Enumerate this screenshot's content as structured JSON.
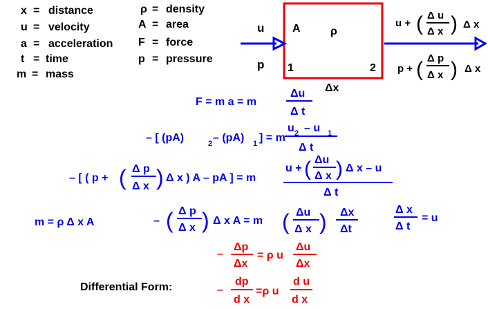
{
  "legend_left": [
    {
      "sym": "x",
      "eq": "=",
      "desc": "distance"
    },
    {
      "sym": "u",
      "eq": "=",
      "desc": "velocity"
    },
    {
      "sym": "a",
      "eq": "=",
      "desc": "acceleration"
    },
    {
      "sym": "t",
      "eq": "=",
      "desc": "time"
    },
    {
      "sym": "m",
      "eq": "=",
      "desc": "mass"
    }
  ],
  "legend_right": [
    {
      "sym": "ρ",
      "eq": "=",
      "desc": "density"
    },
    {
      "sym": "A",
      "eq": "=",
      "desc": "area"
    },
    {
      "sym": "F",
      "eq": "=",
      "desc": "force"
    },
    {
      "sym": "p",
      "eq": "=",
      "desc": "pressure"
    }
  ],
  "box": {
    "label_A": "A",
    "label_rho": "ρ",
    "label_1": "1",
    "label_2": "2",
    "width_label": "Δx"
  },
  "inlet": {
    "u": "u",
    "p": "p"
  },
  "outlet": {
    "u_prefix": "u +",
    "u_num": "Δ u",
    "u_den": "Δ x",
    "u_suffix": "Δ x",
    "p_prefix": "p +",
    "p_num": "Δ p",
    "p_den": "Δ x",
    "p_suffix": "Δ x"
  },
  "eq1": {
    "lhs": "F = m a = m",
    "num": "Δu",
    "den": "Δ t"
  },
  "eq2": {
    "lhs_a": "– [ (pA)",
    "sub2": "2",
    "lhs_b": "– (pA)",
    "sub1": "1",
    "lhs_c": "] = m",
    "num_a": "u",
    "num_sub2": "2",
    "num_b": "– u",
    "num_sub1": "1",
    "den": "Δ t"
  },
  "eq3": {
    "lhs_a": "– [ ( p +",
    "inner_num": "Δ p",
    "inner_den": "Δ x",
    "lhs_b": "Δ x ) A – pA ] = m",
    "num_a": "u +",
    "num_frac_num": "Δu",
    "num_frac_den": "Δ x",
    "num_b": "Δ x – u",
    "den": "Δ t"
  },
  "eq4_mass": {
    "text": "m = ρ Δ x A"
  },
  "eq4": {
    "lhs_minus": "–",
    "f1_num": "Δ p",
    "f1_den": "Δ x",
    "mid": "Δ x A = m",
    "f2_num": "Δu",
    "f2_den": "Δ x",
    "f3_num": "Δx",
    "f3_den": "Δt"
  },
  "eq4_u": {
    "num": "Δ x",
    "den": "Δ t",
    "rhs": "= u"
  },
  "eq5": {
    "minus": "–",
    "f1_num": "Δp",
    "f1_den": "Δx",
    "mid": "= ρ u",
    "f2_num": "Δu",
    "f2_den": "Δx"
  },
  "diff": {
    "label": "Differential Form:",
    "minus": "–",
    "f1_num": "dp",
    "f1_den": "d x",
    "mid": "=ρ u",
    "f2_num": "d u",
    "f2_den": "d x"
  },
  "colors": {
    "blue": "#0000ee",
    "red": "#ee0000",
    "black": "#000000"
  }
}
